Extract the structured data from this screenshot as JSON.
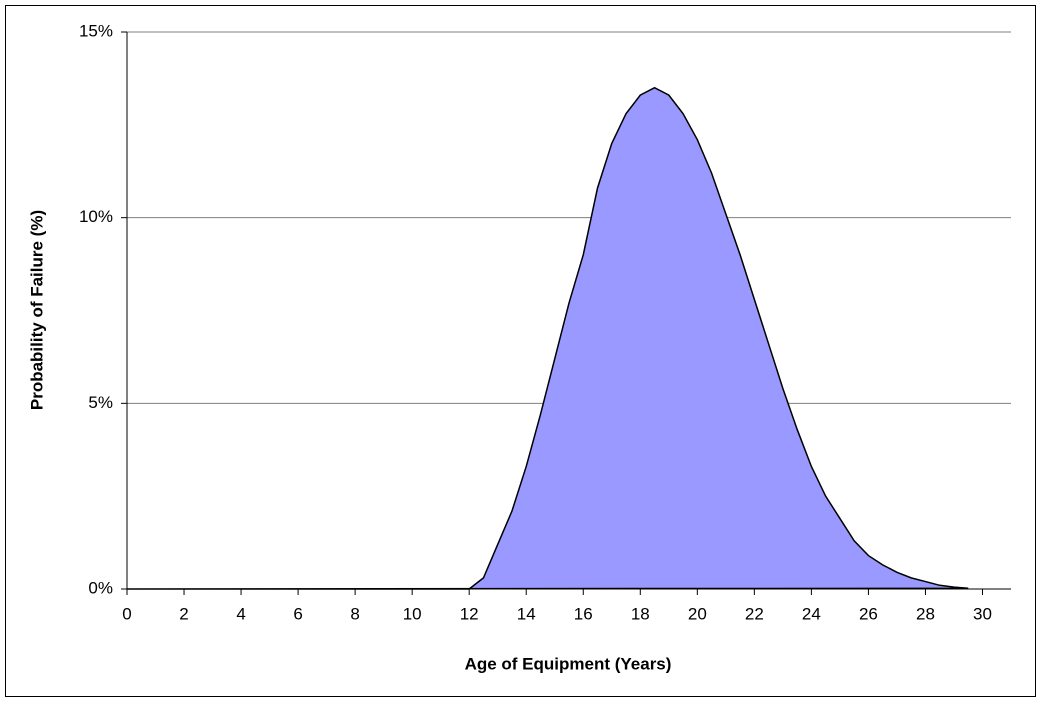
{
  "chart_data": {
    "type": "area",
    "xlabel": "Age of Equipment (Years)",
    "ylabel": "Probability of Failure (%)",
    "x": [
      0,
      12,
      12.5,
      13,
      13.5,
      14,
      14.5,
      15,
      15.5,
      16,
      16.5,
      17,
      17.5,
      18,
      18.5,
      19,
      19.5,
      20,
      20.5,
      21,
      21.5,
      22,
      22.5,
      23,
      23.5,
      24,
      24.5,
      25,
      25.5,
      26,
      26.5,
      27,
      27.5,
      28,
      28.5,
      29,
      29.5
    ],
    "values": [
      0,
      0,
      0.3,
      1.2,
      2.1,
      3.3,
      4.7,
      6.2,
      7.7,
      9.0,
      10.8,
      12.0,
      12.8,
      13.3,
      13.5,
      13.3,
      12.8,
      12.1,
      11.2,
      10.1,
      9.0,
      7.8,
      6.6,
      5.4,
      4.3,
      3.3,
      2.5,
      1.9,
      1.3,
      0.9,
      0.65,
      0.45,
      0.3,
      0.2,
      0.1,
      0.05,
      0.02
    ],
    "color": "#9999ff",
    "line_color": "#000000",
    "xlim": [
      0,
      31
    ],
    "xticks": [
      0,
      2,
      4,
      6,
      8,
      10,
      12,
      14,
      16,
      18,
      20,
      22,
      24,
      26,
      28,
      30
    ],
    "ylim": [
      0,
      15
    ],
    "yticks": [
      {
        "value": 0,
        "label": "0%"
      },
      {
        "value": 5,
        "label": "5%"
      },
      {
        "value": 10,
        "label": "10%"
      },
      {
        "value": 15,
        "label": "15%"
      }
    ],
    "grid": true
  }
}
